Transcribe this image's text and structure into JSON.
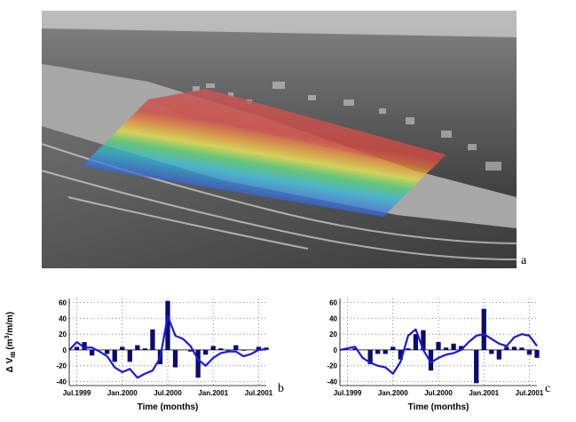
{
  "figure": {
    "panel_labels": {
      "a": "a",
      "b": "b",
      "c": "c"
    },
    "photo_description_colors": {
      "sand": "#9a9a9a",
      "sea": "#5c5c5c",
      "overlay_red": "#c84b4b",
      "overlay_blue": "#3b3bd0"
    }
  },
  "chart_data": [
    {
      "type": "bar+line",
      "panel": "b",
      "title": "",
      "xlabel": "Time (months)",
      "ylabel": "Δ V_IB (m³/m/m)",
      "ylabel_main": "Δ V",
      "ylabel_sub": "IB",
      "ylabel_units_pre": "(m",
      "ylabel_units_sup": "3",
      "ylabel_units_post": "/m/m)",
      "ylim": [
        -45,
        65
      ],
      "yticks": [
        -40,
        -20,
        0,
        20,
        40,
        60
      ],
      "ytick_labels": [
        "-40",
        "-20",
        "0",
        "20",
        "40",
        "60"
      ],
      "xlim": [
        0,
        26
      ],
      "xticks": [
        1,
        7,
        13,
        19,
        25
      ],
      "xtick_labels": [
        "Jul.1999",
        "Jan.2000",
        "Jul.2000",
        "Jan.2001",
        "Jul.2001"
      ],
      "bars": {
        "x": [
          1,
          2,
          3,
          4,
          5,
          6,
          7,
          8,
          9,
          10,
          11,
          12,
          13,
          14,
          15,
          16,
          17,
          18,
          19,
          20,
          21,
          22,
          23,
          24,
          25,
          26
        ],
        "values": [
          4,
          10,
          -7,
          0,
          -5,
          -15,
          4,
          -15,
          6,
          2,
          26,
          -18,
          62,
          -22,
          0,
          -2,
          -35,
          -6,
          5,
          2,
          -1,
          6,
          -1,
          0,
          4,
          3
        ],
        "color": "#0c0c6e"
      },
      "line": {
        "x": [
          0,
          1,
          2,
          3,
          4,
          5,
          6,
          7,
          8,
          9,
          10,
          11,
          12,
          13,
          14,
          15,
          16,
          17,
          18,
          19,
          20,
          21,
          22,
          23,
          24,
          25,
          26
        ],
        "values": [
          0,
          10,
          3,
          3,
          -2,
          -8,
          -22,
          -28,
          -24,
          -35,
          -30,
          -26,
          -10,
          43,
          18,
          14,
          5,
          -12,
          -20,
          -10,
          -4,
          -2,
          -2,
          -8,
          -5,
          0,
          1
        ],
        "color": "#1a1add"
      }
    },
    {
      "type": "bar+line",
      "panel": "c",
      "title": "",
      "xlabel": "Time (months)",
      "ylabel": "",
      "ylim": [
        -45,
        65
      ],
      "yticks": [
        -40,
        -20,
        0,
        20,
        40,
        60
      ],
      "ytick_labels": [
        "-40",
        "-20",
        "0",
        "20",
        "40",
        "60"
      ],
      "xlim": [
        0,
        26
      ],
      "xticks": [
        1,
        7,
        13,
        19,
        25
      ],
      "xtick_labels": [
        "Jul.1999",
        "Jan.2000",
        "Jul.2000",
        "Jan.2001",
        "Jul.2001"
      ],
      "bars": {
        "x": [
          1,
          2,
          3,
          4,
          5,
          6,
          7,
          8,
          9,
          10,
          11,
          12,
          13,
          14,
          15,
          16,
          17,
          18,
          19,
          20,
          21,
          22,
          23,
          24,
          25,
          26
        ],
        "values": [
          0,
          2,
          0,
          -18,
          -5,
          -5,
          4,
          -12,
          2,
          20,
          25,
          -26,
          10,
          3,
          8,
          5,
          0,
          -42,
          52,
          -5,
          -12,
          4,
          4,
          3,
          -6,
          -10
        ],
        "color": "#0c0c6e"
      },
      "line": {
        "x": [
          0,
          1,
          2,
          3,
          4,
          5,
          6,
          7,
          8,
          9,
          10,
          11,
          12,
          13,
          14,
          15,
          16,
          17,
          18,
          19,
          20,
          21,
          22,
          23,
          24,
          25,
          26
        ],
        "values": [
          0,
          2,
          4,
          -10,
          -16,
          -20,
          -22,
          -30,
          -15,
          18,
          26,
          0,
          -16,
          -10,
          -6,
          -4,
          0,
          10,
          18,
          20,
          14,
          8,
          5,
          16,
          20,
          18,
          5
        ],
        "color": "#1a1add"
      }
    }
  ]
}
